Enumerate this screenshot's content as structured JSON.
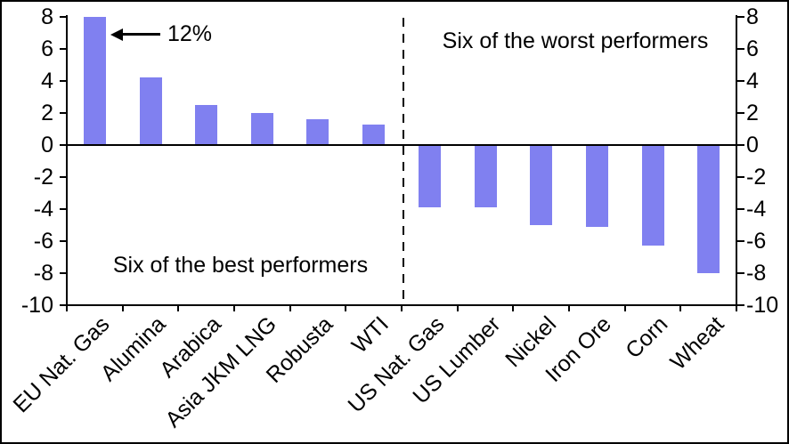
{
  "chart_data": {
    "type": "bar",
    "title": "",
    "xlabel": "",
    "ylabel": "",
    "categories": [
      "EU Nat. Gas",
      "Alumina",
      "Arabica",
      "Asia JKM LNG",
      "Robusta",
      "WTI",
      "US Nat. Gas",
      "US Lumber",
      "Nickel",
      "Iron Ore",
      "Corn",
      "Wheat"
    ],
    "values": [
      12,
      4.2,
      2.5,
      2.0,
      1.6,
      1.3,
      -3.9,
      -3.9,
      -5.0,
      -5.1,
      -6.3,
      -8.0
    ],
    "ylim": [
      -10,
      8
    ],
    "yticks": [
      8,
      6,
      4,
      2,
      0,
      -2,
      -4,
      -6,
      -8,
      -10
    ],
    "clip_max": 8,
    "grid": false,
    "legend": "none",
    "dual_y_axis": true,
    "bar_color": "#8080F0",
    "axis_color": "#000000",
    "separator_after_category_index": 5,
    "annotations": {
      "first_bar_value_label": "12%",
      "left_region_label": "Six of the best performers",
      "right_region_label": "Six of the worst performers"
    }
  }
}
